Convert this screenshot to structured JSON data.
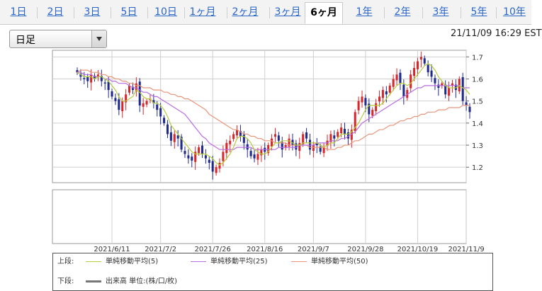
{
  "tabs": [
    {
      "label": "1日",
      "active": false
    },
    {
      "label": "2日",
      "active": false
    },
    {
      "label": "3日",
      "active": false
    },
    {
      "label": "5日",
      "active": false
    },
    {
      "label": "10日",
      "active": false
    },
    {
      "label": "1ヶ月",
      "active": false
    },
    {
      "label": "2ヶ月",
      "active": false
    },
    {
      "label": "3ヶ月",
      "active": false
    },
    {
      "label": "6ヶ月",
      "active": true
    },
    {
      "label": "1年",
      "active": false
    },
    {
      "label": "2年",
      "active": false
    },
    {
      "label": "3年",
      "active": false
    },
    {
      "label": "5年",
      "active": false
    },
    {
      "label": "10年",
      "active": false
    }
  ],
  "dropdown": {
    "label": "日足"
  },
  "timestamp": "21/11/09 16:29 EST",
  "legend": {
    "upper_key": "上段:",
    "upper_items": [
      {
        "label": "単純移動平均(5)",
        "color": "#b5cc3c"
      },
      {
        "label": "単純移動平均(25)",
        "color": "#b86de0"
      },
      {
        "label": "単純移動平均(50)",
        "color": "#e8957a"
      }
    ],
    "lower_key": "下段:",
    "lower_items": [
      {
        "label": "出来高 単位:(株/口/枚)",
        "color": "#777777"
      }
    ]
  },
  "colors": {
    "up": "#d9262b",
    "down": "#1f2a8c",
    "grid": "#cfcfcf",
    "frame": "#9a9a9a"
  },
  "chart_data": {
    "type": "candlestick",
    "title": "",
    "y_ticks": [
      1.2,
      1.3,
      1.4,
      1.5,
      1.6,
      1.7
    ],
    "ylim": [
      1.13,
      1.73
    ],
    "x_labels": [
      "2021/6/11",
      "2021/7/2",
      "2021/7/26",
      "2021/8/16",
      "2021/9/7",
      "2021/9/28",
      "2021/10/19",
      "2021/11/9"
    ],
    "x_label_index": [
      10,
      24,
      39,
      54,
      68,
      83,
      98,
      112
    ],
    "closes": [
      1.63,
      1.61,
      1.6,
      1.59,
      1.62,
      1.6,
      1.62,
      1.59,
      1.58,
      1.55,
      1.52,
      1.5,
      1.46,
      1.5,
      1.53,
      1.57,
      1.55,
      1.58,
      1.48,
      1.49,
      1.5,
      1.51,
      1.49,
      1.46,
      1.43,
      1.4,
      1.35,
      1.32,
      1.35,
      1.33,
      1.28,
      1.26,
      1.24,
      1.23,
      1.27,
      1.29,
      1.26,
      1.24,
      1.22,
      1.18,
      1.2,
      1.22,
      1.27,
      1.31,
      1.32,
      1.35,
      1.37,
      1.34,
      1.31,
      1.28,
      1.25,
      1.24,
      1.26,
      1.28,
      1.27,
      1.3,
      1.33,
      1.35,
      1.32,
      1.28,
      1.3,
      1.33,
      1.3,
      1.28,
      1.31,
      1.35,
      1.33,
      1.28,
      1.3,
      1.3,
      1.27,
      1.29,
      1.32,
      1.35,
      1.33,
      1.36,
      1.38,
      1.35,
      1.33,
      1.37,
      1.45,
      1.5,
      1.52,
      1.48,
      1.44,
      1.46,
      1.49,
      1.52,
      1.55,
      1.53,
      1.57,
      1.6,
      1.62,
      1.58,
      1.52,
      1.55,
      1.62,
      1.65,
      1.68,
      1.7,
      1.67,
      1.63,
      1.61,
      1.58,
      1.56,
      1.58,
      1.53,
      1.56,
      1.58,
      1.55,
      1.6,
      1.5,
      1.48,
      1.45
    ],
    "ma5": [
      1.63,
      1.62,
      1.61,
      1.61,
      1.61,
      1.6,
      1.61,
      1.61,
      1.6,
      1.59,
      1.57,
      1.55,
      1.52,
      1.5,
      1.5,
      1.51,
      1.52,
      1.55,
      1.54,
      1.52,
      1.51,
      1.51,
      1.49,
      1.49,
      1.48,
      1.46,
      1.43,
      1.39,
      1.37,
      1.35,
      1.33,
      1.31,
      1.29,
      1.27,
      1.26,
      1.26,
      1.26,
      1.26,
      1.25,
      1.24,
      1.22,
      1.21,
      1.22,
      1.24,
      1.26,
      1.29,
      1.33,
      1.34,
      1.34,
      1.33,
      1.31,
      1.28,
      1.27,
      1.26,
      1.26,
      1.27,
      1.29,
      1.31,
      1.31,
      1.32,
      1.32,
      1.32,
      1.31,
      1.3,
      1.3,
      1.31,
      1.31,
      1.31,
      1.31,
      1.31,
      1.3,
      1.29,
      1.3,
      1.31,
      1.31,
      1.33,
      1.35,
      1.35,
      1.35,
      1.36,
      1.38,
      1.4,
      1.43,
      1.46,
      1.48,
      1.48,
      1.48,
      1.48,
      1.49,
      1.51,
      1.53,
      1.55,
      1.57,
      1.58,
      1.58,
      1.57,
      1.58,
      1.6,
      1.62,
      1.64,
      1.66,
      1.67,
      1.66,
      1.64,
      1.61,
      1.59,
      1.57,
      1.56,
      1.56,
      1.56,
      1.57,
      1.56,
      1.55,
      1.53
    ],
    "ma25": [
      1.63,
      1.63,
      1.62,
      1.62,
      1.62,
      1.61,
      1.61,
      1.61,
      1.6,
      1.6,
      1.59,
      1.59,
      1.58,
      1.58,
      1.58,
      1.57,
      1.56,
      1.56,
      1.55,
      1.54,
      1.54,
      1.53,
      1.52,
      1.52,
      1.51,
      1.5,
      1.49,
      1.48,
      1.47,
      1.46,
      1.45,
      1.44,
      1.42,
      1.4,
      1.38,
      1.36,
      1.34,
      1.33,
      1.31,
      1.3,
      1.29,
      1.28,
      1.28,
      1.28,
      1.28,
      1.28,
      1.29,
      1.29,
      1.29,
      1.29,
      1.29,
      1.28,
      1.28,
      1.28,
      1.28,
      1.28,
      1.28,
      1.28,
      1.29,
      1.29,
      1.29,
      1.29,
      1.29,
      1.29,
      1.3,
      1.3,
      1.3,
      1.3,
      1.3,
      1.31,
      1.31,
      1.31,
      1.31,
      1.32,
      1.32,
      1.32,
      1.33,
      1.33,
      1.34,
      1.35,
      1.36,
      1.38,
      1.4,
      1.41,
      1.42,
      1.43,
      1.44,
      1.45,
      1.46,
      1.47,
      1.48,
      1.49,
      1.5,
      1.51,
      1.52,
      1.53,
      1.54,
      1.55,
      1.56,
      1.56,
      1.57,
      1.57,
      1.57,
      1.57,
      1.57,
      1.57,
      1.57,
      1.57,
      1.57,
      1.57,
      1.57,
      1.56,
      1.56,
      1.56
    ],
    "ma50": [
      1.63,
      1.64,
      1.64,
      1.64,
      1.63,
      1.63,
      1.63,
      1.62,
      1.62,
      1.61,
      1.61,
      1.6,
      1.6,
      1.59,
      1.59,
      1.58,
      1.58,
      1.57,
      1.57,
      1.56,
      1.56,
      1.56,
      1.55,
      1.55,
      1.55,
      1.54,
      1.54,
      1.53,
      1.53,
      1.52,
      1.52,
      1.51,
      1.51,
      1.5,
      1.49,
      1.48,
      1.47,
      1.46,
      1.44,
      1.43,
      1.42,
      1.41,
      1.4,
      1.39,
      1.38,
      1.37,
      1.37,
      1.36,
      1.35,
      1.35,
      1.34,
      1.34,
      1.33,
      1.33,
      1.32,
      1.32,
      1.32,
      1.31,
      1.31,
      1.31,
      1.31,
      1.3,
      1.3,
      1.3,
      1.3,
      1.3,
      1.3,
      1.29,
      1.29,
      1.29,
      1.29,
      1.29,
      1.28,
      1.28,
      1.28,
      1.29,
      1.29,
      1.3,
      1.3,
      1.31,
      1.32,
      1.32,
      1.33,
      1.34,
      1.35,
      1.35,
      1.36,
      1.37,
      1.37,
      1.38,
      1.39,
      1.39,
      1.4,
      1.41,
      1.41,
      1.42,
      1.42,
      1.43,
      1.43,
      1.44,
      1.44,
      1.45,
      1.45,
      1.45,
      1.46,
      1.46,
      1.46,
      1.47,
      1.47,
      1.47,
      1.47,
      1.48,
      1.48,
      1.48
    ]
  }
}
